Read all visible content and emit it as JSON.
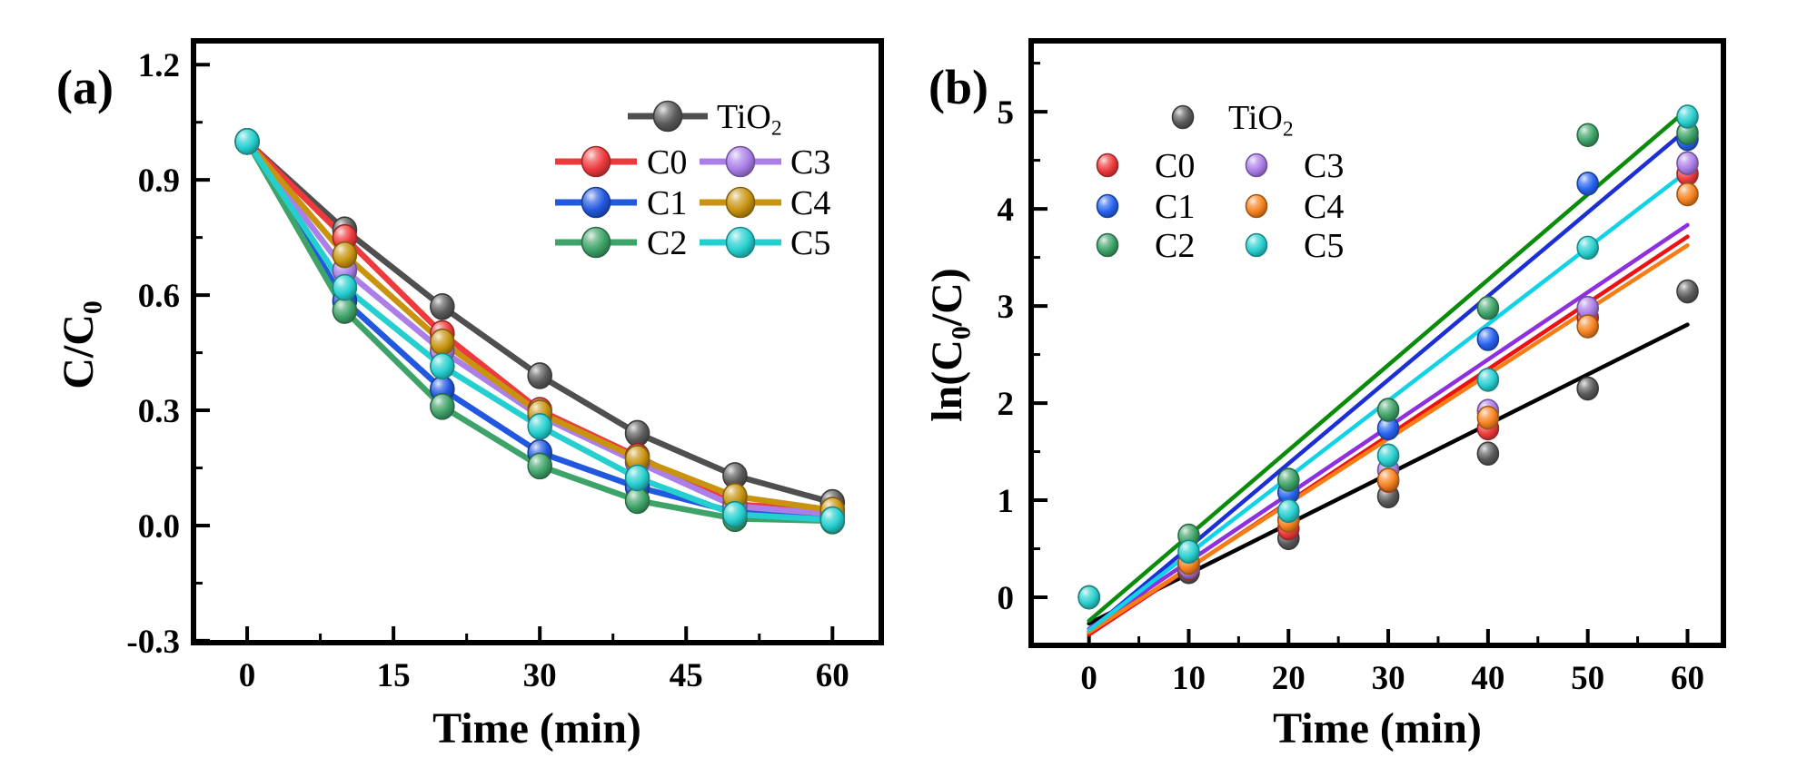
{
  "figure": {
    "background": "#ffffff",
    "description": "Two-panel photocatalytic degradation figure"
  },
  "chart_data": [
    {
      "type": "line",
      "panel": "a",
      "panel_label": "(a)",
      "title": "",
      "xlabel": "Time (min)",
      "ylabel": "C/C0",
      "ylabel_segments": [
        {
          "t": "C/C"
        },
        {
          "t": "0",
          "sub": true
        }
      ],
      "x": [
        0,
        10,
        20,
        30,
        40,
        50,
        60
      ],
      "xlim": [
        -5.5,
        65
      ],
      "ylim": [
        -0.305,
        1.262
      ],
      "xticks": {
        "values": [
          0,
          15,
          30,
          45,
          60
        ],
        "labels": [
          "0",
          "15",
          "30",
          "45",
          "60"
        ],
        "minor": [
          7.5,
          22.5,
          37.5,
          52.5
        ]
      },
      "yticks": {
        "values": [
          -0.3,
          0.0,
          0.3,
          0.6,
          0.9,
          1.2
        ],
        "labels": [
          "-0.3",
          "0.0",
          "0.3",
          "0.6",
          "0.9",
          "1.2"
        ],
        "minor": [
          -0.15,
          0.15,
          0.45,
          0.75,
          1.05
        ]
      },
      "grid": false,
      "legend_position": "upper-right-inside",
      "legend_style": "line-and-ball",
      "series": [
        {
          "name": "TiO2",
          "label_segments": [
            {
              "t": "TiO"
            },
            {
              "t": "2",
              "sub": true
            }
          ],
          "color": "#4f4f4f",
          "marker_color": "#5a5a5a",
          "values": [
            1.0,
            0.77,
            0.57,
            0.39,
            0.24,
            0.13,
            0.06
          ]
        },
        {
          "name": "C0",
          "color": "#ee3a3c",
          "marker_color": "#ee3a3c",
          "values": [
            1.0,
            0.75,
            0.5,
            0.3,
            0.18,
            0.055,
            0.04
          ]
        },
        {
          "name": "C1",
          "color": "#2258e0",
          "marker_color": "#2258e0",
          "values": [
            1.0,
            0.585,
            0.355,
            0.19,
            0.1,
            0.035,
            0.022
          ]
        },
        {
          "name": "C2",
          "color": "#3ea368",
          "marker_color": "#3ea368",
          "values": [
            1.0,
            0.56,
            0.31,
            0.155,
            0.065,
            0.018,
            0.012
          ]
        },
        {
          "name": "C3",
          "color": "#ab7ee8",
          "marker_color": "#ab7ee8",
          "values": [
            1.0,
            0.665,
            0.455,
            0.285,
            0.165,
            0.05,
            0.03
          ]
        },
        {
          "name": "C4",
          "color": "#c8930f",
          "marker_color": "#c8930f",
          "values": [
            1.0,
            0.705,
            0.478,
            0.293,
            0.175,
            0.076,
            0.04
          ]
        },
        {
          "name": "C5",
          "color": "#26cfcf",
          "marker_color": "#26cfcf",
          "values": [
            1.0,
            0.62,
            0.415,
            0.258,
            0.124,
            0.029,
            0.015
          ]
        }
      ]
    },
    {
      "type": "scatter",
      "panel": "b",
      "panel_label": "(b)",
      "title": "",
      "xlabel": "Time (min)",
      "ylabel": "ln(C0/C)",
      "ylabel_segments": [
        {
          "t": "ln(C"
        },
        {
          "t": "0",
          "sub": true
        },
        {
          "t": "/C)"
        }
      ],
      "x": [
        0,
        10,
        20,
        30,
        40,
        50,
        60
      ],
      "xlim": [
        -5.8,
        63.6
      ],
      "ylim": [
        -0.495,
        5.73
      ],
      "xticks": {
        "values": [
          0,
          10,
          20,
          30,
          40,
          50,
          60
        ],
        "labels": [
          "0",
          "10",
          "20",
          "30",
          "40",
          "50",
          "60"
        ],
        "minor": [
          5,
          15,
          25,
          35,
          45,
          55
        ]
      },
      "yticks": {
        "values": [
          0,
          1,
          2,
          3,
          4,
          5
        ],
        "labels": [
          "0",
          "1",
          "2",
          "3",
          "4",
          "5"
        ],
        "minor": [
          0.5,
          1.5,
          2.5,
          3.5,
          4.5,
          5.5
        ]
      },
      "grid": false,
      "legend_position": "upper-left-inside",
      "legend_style": "ball-only",
      "fit_range": [
        0,
        60
      ],
      "series": [
        {
          "name": "TiO2",
          "label_segments": [
            {
              "t": "TiO"
            },
            {
              "t": "2",
              "sub": true
            }
          ],
          "marker_color": "#5a5a5a",
          "line_color": "#000000",
          "fit": {
            "slope": 0.0513,
            "intercept": -0.27
          },
          "values": [
            0,
            0.26,
            0.61,
            1.04,
            1.48,
            2.15,
            3.15
          ]
        },
        {
          "name": "C0",
          "marker_color": "#ee3a3c",
          "line_color": "#ee1111",
          "fit": {
            "slope": 0.0683,
            "intercept": -0.384
          },
          "values": [
            0,
            0.3,
            0.71,
            1.2,
            1.74,
            2.88,
            4.36
          ]
        },
        {
          "name": "C1",
          "marker_color": "#2663f0",
          "line_color": "#1b2fd4",
          "fit": {
            "slope": 0.0862,
            "intercept": -0.347
          },
          "values": [
            0,
            0.33,
            1.08,
            1.74,
            2.66,
            4.26,
            4.72
          ]
        },
        {
          "name": "C2",
          "marker_color": "#3ea368",
          "line_color": "#0a8c0a",
          "fit": {
            "slope": 0.0878,
            "intercept": -0.242
          },
          "values": [
            0,
            0.635,
            1.21,
            1.93,
            2.98,
            4.76,
            4.78
          ]
        },
        {
          "name": "C3",
          "marker_color": "#ab7ee8",
          "line_color": "#8e30e0",
          "fit": {
            "slope": 0.0693,
            "intercept": -0.324
          },
          "values": [
            0,
            0.31,
            0.8,
            1.31,
            1.92,
            2.98,
            4.47
          ]
        },
        {
          "name": "C4",
          "marker_color": "#f5821f",
          "line_color": "#f57d14",
          "fit": {
            "slope": 0.0664,
            "intercept": -0.36
          },
          "values": [
            0,
            0.355,
            0.79,
            1.21,
            1.85,
            2.79,
            4.15
          ]
        },
        {
          "name": "C5",
          "marker_color": "#29cfcf",
          "line_color": "#12d2e6",
          "fit": {
            "slope": 0.0788,
            "intercept": -0.34
          },
          "values": [
            0,
            0.47,
            0.89,
            1.46,
            2.24,
            3.6,
            4.95
          ]
        }
      ]
    }
  ]
}
